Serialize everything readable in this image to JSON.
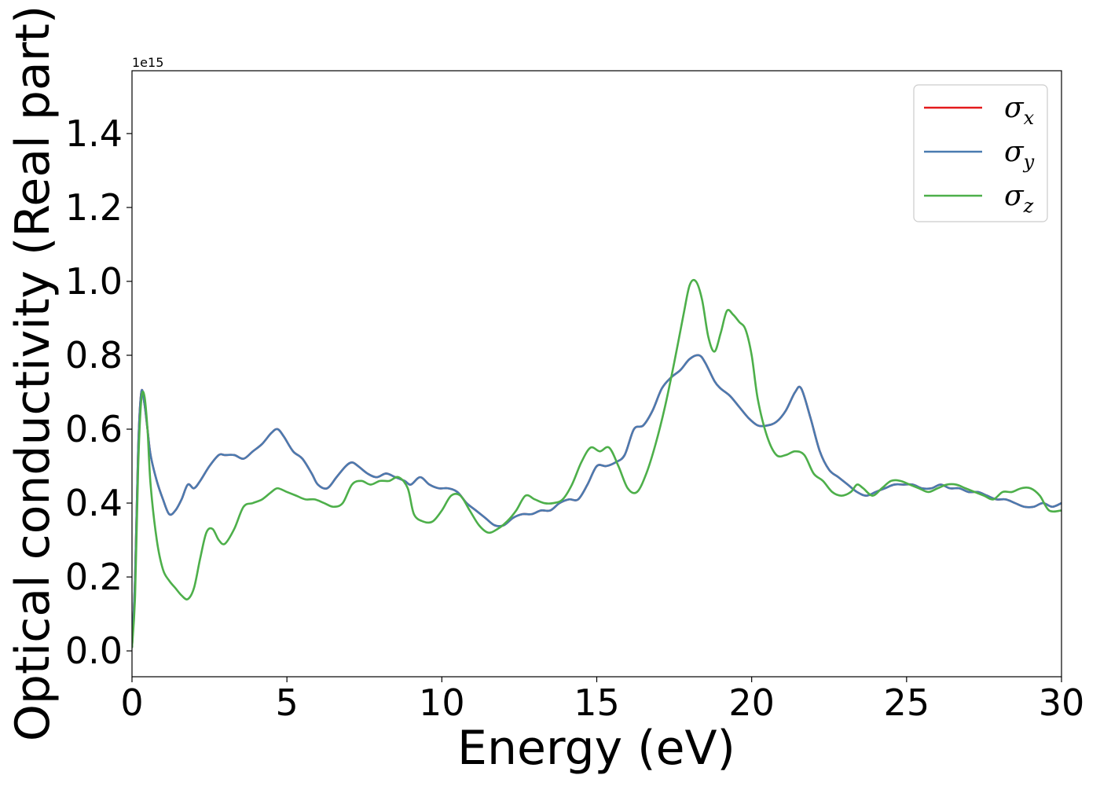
{
  "chart_data": {
    "type": "line",
    "title": "",
    "xlabel": "Energy (eV)",
    "ylabel": "Optical conductivity (Real part)",
    "y_offset_label": "1e15",
    "xlim": [
      0,
      30
    ],
    "ylim": [
      -0.07,
      1.57
    ],
    "x_ticks": [
      0,
      5,
      10,
      15,
      20,
      25,
      30
    ],
    "x_tick_labels": [
      "0",
      "5",
      "10",
      "15",
      "20",
      "25",
      "30"
    ],
    "y_ticks": [
      0.0,
      0.2,
      0.4,
      0.6,
      0.8,
      1.0,
      1.2,
      1.4
    ],
    "y_tick_labels": [
      "0.0",
      "0.2",
      "0.4",
      "0.6",
      "0.8",
      "1.0",
      "1.2",
      "1.4"
    ],
    "grid": false,
    "legend_position": "top-right",
    "series": [
      {
        "name": "σx",
        "symbol": "σ",
        "subscript": "x",
        "color": "#e41a1c",
        "x": [
          0,
          0.1,
          0.2,
          0.3,
          0.4,
          0.5,
          0.6,
          0.8,
          1.0,
          1.2,
          1.4,
          1.6,
          1.8,
          2.0,
          2.2,
          2.5,
          2.8,
          3.0,
          3.3,
          3.6,
          3.9,
          4.2,
          4.5,
          4.7,
          4.9,
          5.2,
          5.5,
          5.8,
          6.0,
          6.3,
          6.6,
          6.9,
          7.1,
          7.3,
          7.6,
          7.9,
          8.2,
          8.5,
          8.8,
          9.0,
          9.3,
          9.6,
          9.9,
          10.2,
          10.5,
          10.8,
          11.1,
          11.4,
          11.7,
          12.0,
          12.3,
          12.6,
          12.9,
          13.2,
          13.5,
          13.8,
          14.1,
          14.4,
          14.7,
          15.0,
          15.3,
          15.6,
          15.9,
          16.2,
          16.5,
          16.8,
          17.1,
          17.4,
          17.7,
          18.0,
          18.3,
          18.5,
          18.8,
          19.0,
          19.3,
          19.6,
          19.9,
          20.2,
          20.5,
          20.8,
          21.1,
          21.4,
          21.6,
          21.9,
          22.2,
          22.5,
          22.8,
          23.1,
          23.4,
          23.7,
          24.0,
          24.3,
          24.6,
          24.9,
          25.2,
          25.5,
          25.8,
          26.1,
          26.4,
          26.7,
          27.0,
          27.3,
          27.6,
          27.9,
          28.2,
          28.5,
          28.8,
          29.1,
          29.4,
          29.7,
          30.0
        ],
        "values": [
          0.01,
          0.2,
          0.55,
          0.7,
          0.67,
          0.6,
          0.53,
          0.46,
          0.41,
          0.37,
          0.38,
          0.41,
          0.45,
          0.44,
          0.46,
          0.5,
          0.53,
          0.53,
          0.53,
          0.52,
          0.54,
          0.56,
          0.59,
          0.6,
          0.58,
          0.54,
          0.52,
          0.48,
          0.45,
          0.44,
          0.47,
          0.5,
          0.51,
          0.5,
          0.48,
          0.47,
          0.48,
          0.47,
          0.46,
          0.45,
          0.47,
          0.45,
          0.44,
          0.44,
          0.43,
          0.4,
          0.38,
          0.36,
          0.34,
          0.34,
          0.36,
          0.37,
          0.37,
          0.38,
          0.38,
          0.4,
          0.41,
          0.41,
          0.45,
          0.5,
          0.5,
          0.51,
          0.53,
          0.6,
          0.61,
          0.65,
          0.71,
          0.74,
          0.76,
          0.79,
          0.8,
          0.78,
          0.73,
          0.71,
          0.69,
          0.66,
          0.63,
          0.61,
          0.61,
          0.62,
          0.65,
          0.7,
          0.71,
          0.63,
          0.54,
          0.49,
          0.47,
          0.45,
          0.43,
          0.42,
          0.43,
          0.44,
          0.45,
          0.45,
          0.45,
          0.44,
          0.44,
          0.45,
          0.44,
          0.44,
          0.43,
          0.43,
          0.42,
          0.41,
          0.41,
          0.4,
          0.39,
          0.39,
          0.4,
          0.39,
          0.4
        ]
      },
      {
        "name": "σy",
        "symbol": "σ",
        "subscript": "y",
        "color": "#4a7bb0",
        "x": [
          0,
          0.1,
          0.2,
          0.3,
          0.4,
          0.5,
          0.6,
          0.8,
          1.0,
          1.2,
          1.4,
          1.6,
          1.8,
          2.0,
          2.2,
          2.5,
          2.8,
          3.0,
          3.3,
          3.6,
          3.9,
          4.2,
          4.5,
          4.7,
          4.9,
          5.2,
          5.5,
          5.8,
          6.0,
          6.3,
          6.6,
          6.9,
          7.1,
          7.3,
          7.6,
          7.9,
          8.2,
          8.5,
          8.8,
          9.0,
          9.3,
          9.6,
          9.9,
          10.2,
          10.5,
          10.8,
          11.1,
          11.4,
          11.7,
          12.0,
          12.3,
          12.6,
          12.9,
          13.2,
          13.5,
          13.8,
          14.1,
          14.4,
          14.7,
          15.0,
          15.3,
          15.6,
          15.9,
          16.2,
          16.5,
          16.8,
          17.1,
          17.4,
          17.7,
          18.0,
          18.3,
          18.5,
          18.8,
          19.0,
          19.3,
          19.6,
          19.9,
          20.2,
          20.5,
          20.8,
          21.1,
          21.4,
          21.6,
          21.9,
          22.2,
          22.5,
          22.8,
          23.1,
          23.4,
          23.7,
          24.0,
          24.3,
          24.6,
          24.9,
          25.2,
          25.5,
          25.8,
          26.1,
          26.4,
          26.7,
          27.0,
          27.3,
          27.6,
          27.9,
          28.2,
          28.5,
          28.8,
          29.1,
          29.4,
          29.7,
          30.0
        ],
        "values": [
          0.01,
          0.2,
          0.55,
          0.7,
          0.67,
          0.6,
          0.53,
          0.46,
          0.41,
          0.37,
          0.38,
          0.41,
          0.45,
          0.44,
          0.46,
          0.5,
          0.53,
          0.53,
          0.53,
          0.52,
          0.54,
          0.56,
          0.59,
          0.6,
          0.58,
          0.54,
          0.52,
          0.48,
          0.45,
          0.44,
          0.47,
          0.5,
          0.51,
          0.5,
          0.48,
          0.47,
          0.48,
          0.47,
          0.46,
          0.45,
          0.47,
          0.45,
          0.44,
          0.44,
          0.43,
          0.4,
          0.38,
          0.36,
          0.34,
          0.34,
          0.36,
          0.37,
          0.37,
          0.38,
          0.38,
          0.4,
          0.41,
          0.41,
          0.45,
          0.5,
          0.5,
          0.51,
          0.53,
          0.6,
          0.61,
          0.65,
          0.71,
          0.74,
          0.76,
          0.79,
          0.8,
          0.78,
          0.73,
          0.71,
          0.69,
          0.66,
          0.63,
          0.61,
          0.61,
          0.62,
          0.65,
          0.7,
          0.71,
          0.63,
          0.54,
          0.49,
          0.47,
          0.45,
          0.43,
          0.42,
          0.43,
          0.44,
          0.45,
          0.45,
          0.45,
          0.44,
          0.44,
          0.45,
          0.44,
          0.44,
          0.43,
          0.43,
          0.42,
          0.41,
          0.41,
          0.4,
          0.39,
          0.39,
          0.4,
          0.39,
          0.4
        ]
      },
      {
        "name": "σz",
        "symbol": "σ",
        "subscript": "z",
        "color": "#4daf4a",
        "x": [
          0,
          0.1,
          0.2,
          0.3,
          0.4,
          0.5,
          0.6,
          0.8,
          1.0,
          1.2,
          1.4,
          1.6,
          1.8,
          2.0,
          2.2,
          2.4,
          2.6,
          2.8,
          3.0,
          3.3,
          3.6,
          3.9,
          4.2,
          4.5,
          4.7,
          5.0,
          5.3,
          5.6,
          5.9,
          6.2,
          6.5,
          6.8,
          7.1,
          7.4,
          7.7,
          8.0,
          8.3,
          8.6,
          8.9,
          9.1,
          9.4,
          9.7,
          10.0,
          10.3,
          10.6,
          10.9,
          11.2,
          11.5,
          11.8,
          12.1,
          12.4,
          12.7,
          13.0,
          13.3,
          13.6,
          13.9,
          14.2,
          14.5,
          14.8,
          15.1,
          15.4,
          15.7,
          16.0,
          16.3,
          16.6,
          16.9,
          17.2,
          17.5,
          17.8,
          18.0,
          18.2,
          18.4,
          18.6,
          18.8,
          19.0,
          19.2,
          19.4,
          19.6,
          19.8,
          20.0,
          20.2,
          20.5,
          20.8,
          21.1,
          21.4,
          21.7,
          22.0,
          22.3,
          22.6,
          22.9,
          23.2,
          23.4,
          23.6,
          23.9,
          24.2,
          24.5,
          24.8,
          25.1,
          25.4,
          25.7,
          26.0,
          26.3,
          26.6,
          26.9,
          27.2,
          27.5,
          27.8,
          28.1,
          28.4,
          28.7,
          29.0,
          29.3,
          29.6,
          30.0
        ],
        "values": [
          0.01,
          0.15,
          0.5,
          0.68,
          0.69,
          0.6,
          0.45,
          0.3,
          0.22,
          0.19,
          0.17,
          0.15,
          0.14,
          0.17,
          0.25,
          0.32,
          0.33,
          0.3,
          0.29,
          0.33,
          0.39,
          0.4,
          0.41,
          0.43,
          0.44,
          0.43,
          0.42,
          0.41,
          0.41,
          0.4,
          0.39,
          0.4,
          0.45,
          0.46,
          0.45,
          0.46,
          0.46,
          0.47,
          0.44,
          0.37,
          0.35,
          0.35,
          0.38,
          0.42,
          0.42,
          0.38,
          0.34,
          0.32,
          0.33,
          0.35,
          0.38,
          0.42,
          0.41,
          0.4,
          0.4,
          0.41,
          0.45,
          0.51,
          0.55,
          0.54,
          0.55,
          0.5,
          0.44,
          0.43,
          0.48,
          0.56,
          0.66,
          0.78,
          0.91,
          0.99,
          1.0,
          0.95,
          0.85,
          0.81,
          0.86,
          0.92,
          0.91,
          0.89,
          0.87,
          0.8,
          0.68,
          0.58,
          0.53,
          0.53,
          0.54,
          0.53,
          0.48,
          0.46,
          0.43,
          0.42,
          0.43,
          0.45,
          0.44,
          0.42,
          0.44,
          0.46,
          0.46,
          0.45,
          0.44,
          0.43,
          0.44,
          0.45,
          0.45,
          0.44,
          0.43,
          0.42,
          0.41,
          0.43,
          0.43,
          0.44,
          0.44,
          0.42,
          0.38,
          0.38
        ]
      }
    ]
  }
}
